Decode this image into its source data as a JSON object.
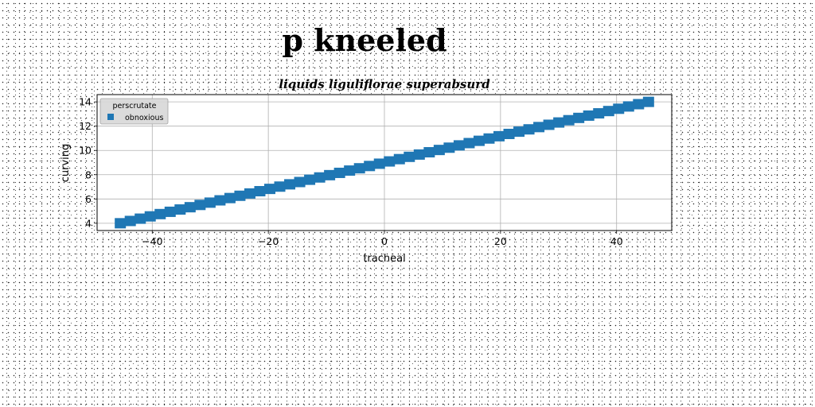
{
  "chart_data": {
    "type": "scatter",
    "title": "p kneeled",
    "subtitle": "liquids liguliflorae superabsurd",
    "xlabel": "tracheal",
    "ylabel": "curving",
    "xlim": [
      -49.5,
      49.5
    ],
    "ylim": [
      3.4,
      14.6
    ],
    "x_ticks": [
      -40,
      -20,
      0,
      20,
      40
    ],
    "x_tick_labels": [
      "−40",
      "−20",
      "0",
      "20",
      "40"
    ],
    "y_ticks": [
      4,
      6,
      8,
      10,
      12,
      14
    ],
    "y_tick_labels": [
      "4",
      "6",
      "8",
      "10",
      "12",
      "14"
    ],
    "grid": true,
    "legend": {
      "title": "perscrutate",
      "placement": "top-left"
    },
    "marker": "square",
    "series": [
      {
        "name": "obnoxious",
        "color": "#1f77b4",
        "x_start": -45.5,
        "x_end": 45.5,
        "y_start": 4.0,
        "y_end": 14.0,
        "points": 54
      }
    ]
  }
}
